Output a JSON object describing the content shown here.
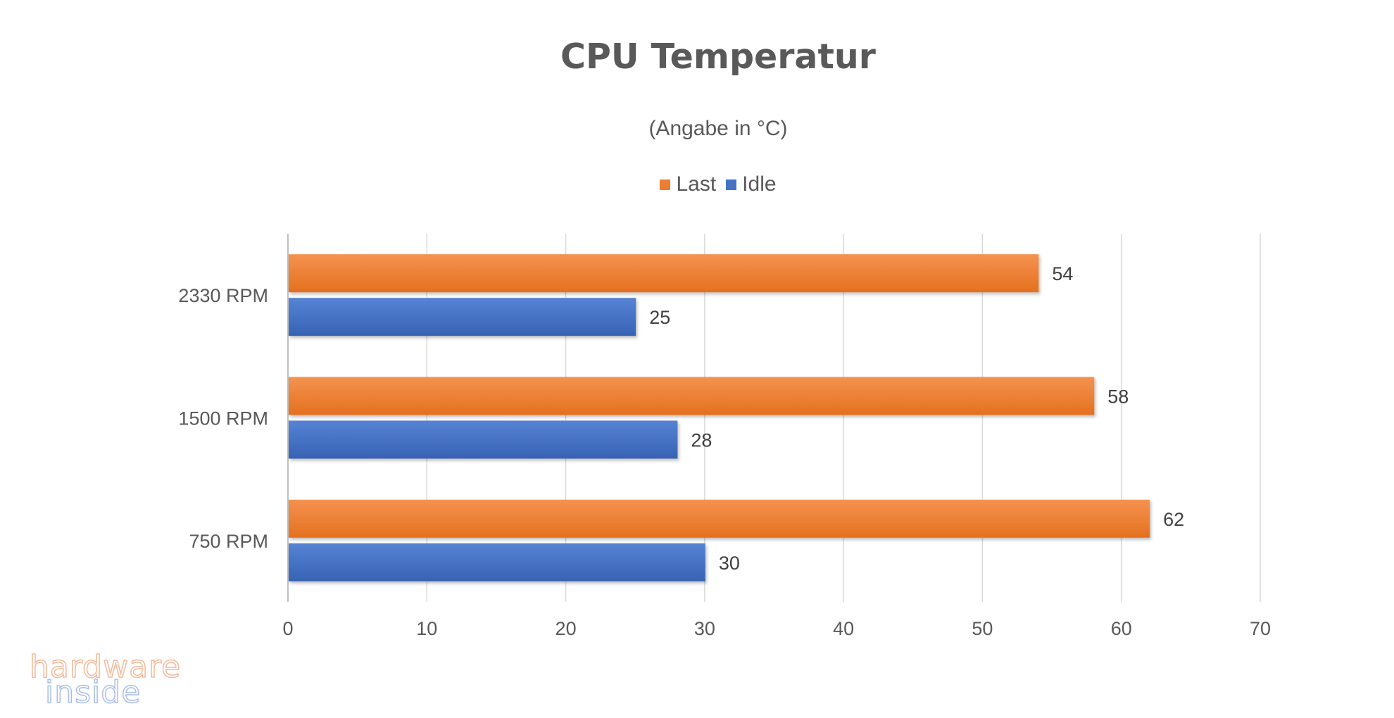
{
  "chart_data": {
    "type": "bar",
    "orientation": "horizontal",
    "title": "CPU Temperatur",
    "subtitle": "(Angabe in °C)",
    "categories": [
      "2330 RPM",
      "1500 RPM",
      "750 RPM"
    ],
    "series": [
      {
        "name": "Last",
        "values": [
          54,
          58,
          62
        ],
        "color": "#ed7d31"
      },
      {
        "name": "Idle",
        "values": [
          25,
          28,
          30
        ],
        "color": "#4472c4"
      }
    ],
    "xlim": [
      0,
      70
    ],
    "x_ticks": [
      "0",
      "10",
      "20",
      "30",
      "40",
      "50",
      "60",
      "70"
    ],
    "grid": "vertical",
    "legend_position": "top",
    "data_labels": true
  },
  "watermark": {
    "line1": "hardware",
    "line2": "inside"
  }
}
